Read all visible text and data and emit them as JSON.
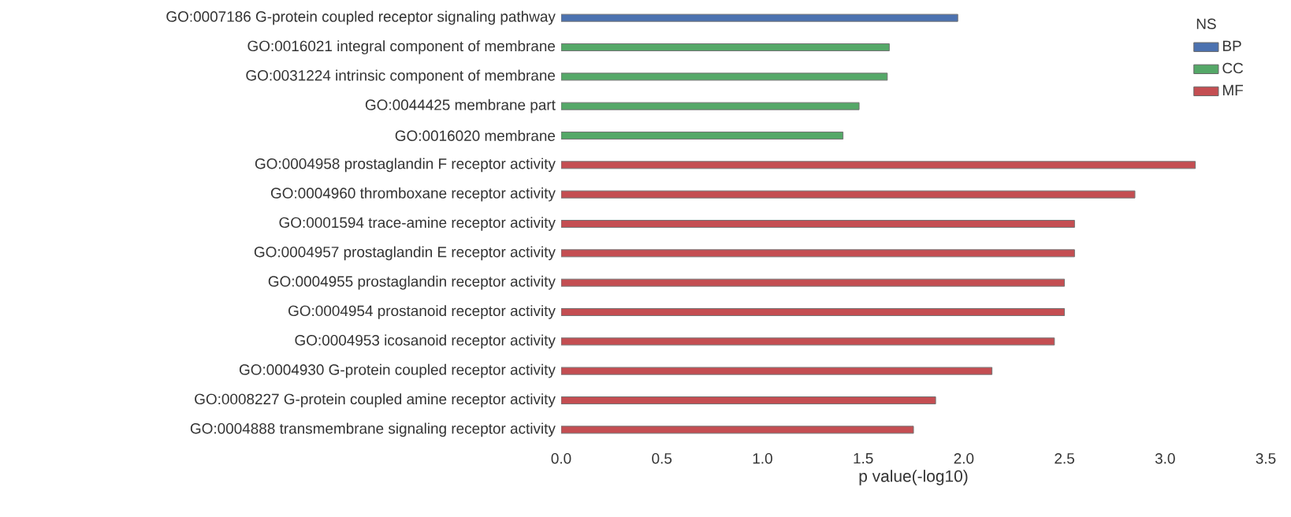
{
  "chart_data": {
    "type": "bar",
    "orientation": "horizontal",
    "xlabel": "p value(-log10)",
    "legend_title": "NS",
    "legend": "top right",
    "categories": [
      "GO:0007186 G-protein coupled receptor signaling pathway",
      "GO:0016021 integral component of membrane",
      "GO:0031224 intrinsic component of membrane",
      "GO:0044425 membrane part",
      "GO:0016020 membrane",
      "GO:0004958 prostaglandin F receptor activity",
      "GO:0004960 thromboxane receptor activity",
      "GO:0001594 trace-amine receptor activity",
      "GO:0004957 prostaglandin E receptor activity",
      "GO:0004955 prostaglandin receptor activity",
      "GO:0004954 prostanoid receptor activity",
      "GO:0004953 icosanoid receptor activity",
      "GO:0004930 G-protein coupled receptor activity",
      "GO:0008227 G-protein coupled amine receptor activity",
      "GO:0004888 transmembrane signaling receptor activity"
    ],
    "series": [
      {
        "name": "BP",
        "color": "#4c72b0",
        "values": [
          1.97,
          null,
          null,
          null,
          null,
          null,
          null,
          null,
          null,
          null,
          null,
          null,
          null,
          null,
          null
        ]
      },
      {
        "name": "CC",
        "color": "#55a868",
        "values": [
          null,
          1.63,
          1.62,
          1.48,
          1.4,
          null,
          null,
          null,
          null,
          null,
          null,
          null,
          null,
          null,
          null
        ]
      },
      {
        "name": "MF",
        "color": "#c44e52",
        "values": [
          null,
          null,
          null,
          null,
          null,
          3.15,
          2.85,
          2.55,
          2.55,
          2.5,
          2.5,
          2.45,
          2.14,
          1.86,
          1.75
        ]
      }
    ],
    "xlim": [
      0,
      3.5
    ],
    "xticks": [
      {
        "value": 0,
        "label": "0.0"
      },
      {
        "value": 0.5,
        "label": "0.5"
      },
      {
        "value": 1,
        "label": "1.0"
      },
      {
        "value": 1.5,
        "label": "1.5"
      },
      {
        "value": 2,
        "label": "2.0"
      },
      {
        "value": 2.5,
        "label": "2.5"
      },
      {
        "value": 3,
        "label": "3.0"
      },
      {
        "value": 3.5,
        "label": "3.5"
      }
    ]
  }
}
